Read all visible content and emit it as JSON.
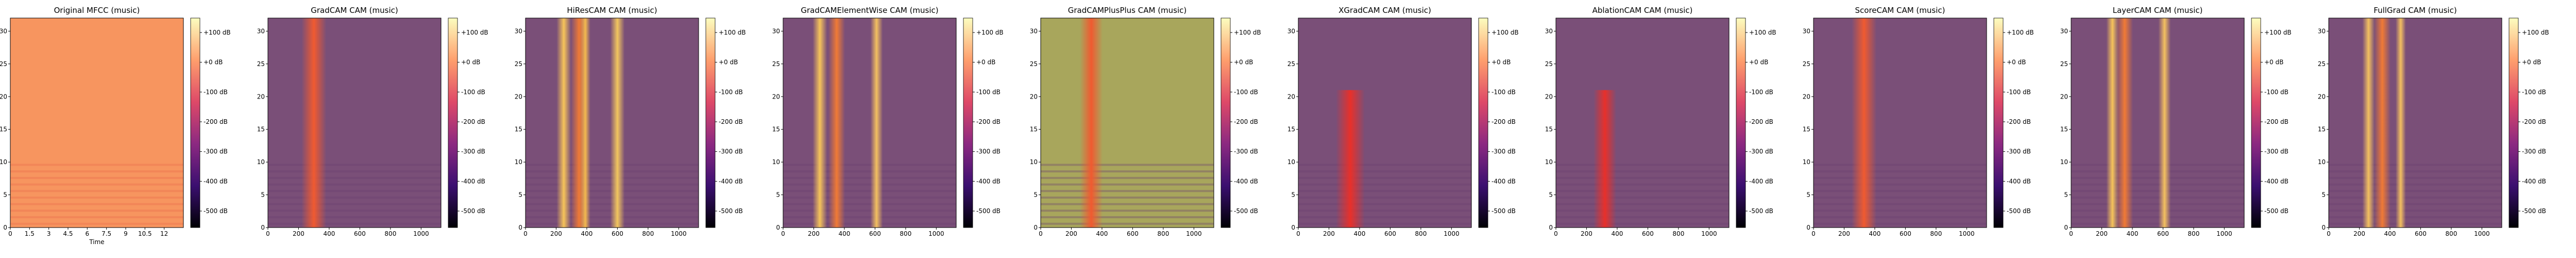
{
  "chart_data": [
    {
      "type": "heatmap",
      "title": "Original MFCC (music)",
      "xlabel": "Time",
      "xticks": [
        "0",
        "1.5",
        "3",
        "4.5",
        "6",
        "7.5",
        "9",
        "10.5",
        "12"
      ],
      "xlim": [
        0,
        13.5
      ],
      "yticks": [
        "0",
        "5",
        "10",
        "15",
        "20",
        "25",
        "30"
      ],
      "ylim": [
        0,
        32
      ],
      "colorbar": {
        "ticks": [
          "+100 dB",
          "+0 dB",
          "-100 dB",
          "-200 dB",
          "-300 dB",
          "-400 dB",
          "-500 dB"
        ]
      },
      "colormap": "magma",
      "heat": "uniform"
    },
    {
      "type": "heatmap",
      "title": "GradCAM CAM (music)",
      "xticks": [
        "0",
        "200",
        "400",
        "600",
        "800",
        "1000"
      ],
      "xlim": [
        0,
        1130
      ],
      "yticks": [
        "0",
        "5",
        "10",
        "15",
        "20",
        "25",
        "30"
      ],
      "ylim": [
        0,
        32
      ],
      "colorbar": {
        "ticks": [
          "+100 dB",
          "+0 dB",
          "-100 dB",
          "-200 dB",
          "-300 dB",
          "-400 dB",
          "-500 dB"
        ]
      },
      "bands": [
        {
          "x": 300,
          "ymax": 32,
          "w": 24,
          "color": "#f05a30"
        }
      ]
    },
    {
      "type": "heatmap",
      "title": "HiResCAM CAM (music)",
      "xticks": [
        "0",
        "200",
        "400",
        "600",
        "800",
        "1000"
      ],
      "xlim": [
        0,
        1130
      ],
      "yticks": [
        "0",
        "5",
        "10",
        "15",
        "20",
        "25",
        "30"
      ],
      "ylim": [
        0,
        32
      ],
      "colorbar": {
        "ticks": [
          "+100 dB",
          "+0 dB",
          "-100 dB",
          "-200 dB",
          "-300 dB",
          "-400 dB",
          "-500 dB"
        ]
      },
      "bands": [
        {
          "x": 250,
          "ymax": 32,
          "w": 14,
          "color": "#f6c45a"
        },
        {
          "x": 350,
          "ymax": 32,
          "w": 16,
          "color": "#f07a35"
        },
        {
          "x": 390,
          "ymax": 32,
          "w": 10,
          "color": "#f3b94f"
        },
        {
          "x": 600,
          "ymax": 32,
          "w": 14,
          "color": "#f2c65e"
        }
      ]
    },
    {
      "type": "heatmap",
      "title": "GradCAMElementWise CAM (music)",
      "xticks": [
        "0",
        "200",
        "400",
        "600",
        "800",
        "1000"
      ],
      "xlim": [
        0,
        1130
      ],
      "yticks": [
        "0",
        "5",
        "10",
        "15",
        "20",
        "25",
        "30"
      ],
      "ylim": [
        0,
        32
      ],
      "colorbar": {
        "ticks": [
          "+100 dB",
          "+0 dB",
          "-100 dB",
          "-200 dB",
          "-300 dB",
          "-400 dB",
          "-500 dB"
        ]
      },
      "bands": [
        {
          "x": 240,
          "ymax": 32,
          "w": 14,
          "color": "#f6c45a"
        },
        {
          "x": 350,
          "ymax": 32,
          "w": 16,
          "color": "#f07a35"
        },
        {
          "x": 610,
          "ymax": 32,
          "w": 12,
          "color": "#f3c060"
        }
      ]
    },
    {
      "type": "heatmap",
      "title": "GradCAMPlusPlus CAM (music)",
      "xticks": [
        "0",
        "200",
        "400",
        "600",
        "800",
        "1000"
      ],
      "xlim": [
        0,
        1130
      ],
      "yticks": [
        "0",
        "5",
        "10",
        "15",
        "20",
        "25",
        "30"
      ],
      "ylim": [
        0,
        32
      ],
      "colorbar": {
        "ticks": [
          "+100 dB",
          "+0 dB",
          "-100 dB",
          "-200 dB",
          "-300 dB",
          "-400 dB",
          "-500 dB"
        ]
      },
      "heat": "uniform-olive",
      "bands": [
        {
          "x": 330,
          "ymax": 32,
          "w": 22,
          "color": "#f05a30"
        }
      ]
    },
    {
      "type": "heatmap",
      "title": "XGradCAM CAM (music)",
      "xticks": [
        "0",
        "200",
        "400",
        "600",
        "800",
        "1000"
      ],
      "xlim": [
        0,
        1130
      ],
      "yticks": [
        "0",
        "5",
        "10",
        "15",
        "20",
        "25",
        "30"
      ],
      "ylim": [
        0,
        32
      ],
      "colorbar": {
        "ticks": [
          "+100 dB",
          "+0 dB",
          "-100 dB",
          "-200 dB",
          "-300 dB",
          "-400 dB",
          "-500 dB"
        ]
      },
      "bands": [
        {
          "x": 340,
          "ymax": 21,
          "w": 28,
          "color": "#e8302a"
        }
      ]
    },
    {
      "type": "heatmap",
      "title": "AblationCAM CAM (music)",
      "xticks": [
        "0",
        "200",
        "400",
        "600",
        "800",
        "1000"
      ],
      "xlim": [
        0,
        1130
      ],
      "yticks": [
        "0",
        "5",
        "10",
        "15",
        "20",
        "25",
        "30"
      ],
      "ylim": [
        0,
        32
      ],
      "colorbar": {
        "ticks": [
          "+100 dB",
          "+0 dB",
          "-100 dB",
          "-200 dB",
          "-300 dB",
          "-400 dB",
          "-500 dB"
        ]
      },
      "bands": [
        {
          "x": 320,
          "ymax": 21,
          "w": 22,
          "color": "#e8302a"
        }
      ]
    },
    {
      "type": "heatmap",
      "title": "ScoreCAM CAM (music)",
      "xticks": [
        "0",
        "200",
        "400",
        "600",
        "800",
        "1000"
      ],
      "xlim": [
        0,
        1130
      ],
      "yticks": [
        "0",
        "5",
        "10",
        "15",
        "20",
        "25",
        "30"
      ],
      "ylim": [
        0,
        32
      ],
      "colorbar": {
        "ticks": [
          "+100 dB",
          "+0 dB",
          "-100 dB",
          "-200 dB",
          "-300 dB",
          "-400 dB",
          "-500 dB"
        ]
      },
      "bands": [
        {
          "x": 330,
          "ymax": 32,
          "w": 24,
          "color": "#f05a30"
        }
      ]
    },
    {
      "type": "heatmap",
      "title": "LayerCAM CAM (music)",
      "xticks": [
        "0",
        "200",
        "400",
        "600",
        "800",
        "1000"
      ],
      "xlim": [
        0,
        1130
      ],
      "yticks": [
        "0",
        "5",
        "10",
        "15",
        "20",
        "25",
        "30"
      ],
      "ylim": [
        0,
        32
      ],
      "colorbar": {
        "ticks": [
          "+100 dB",
          "+0 dB",
          "-100 dB",
          "-200 dB",
          "-300 dB",
          "-400 dB",
          "-500 dB"
        ]
      },
      "bands": [
        {
          "x": 270,
          "ymax": 32,
          "w": 12,
          "color": "#f6c45a"
        },
        {
          "x": 350,
          "ymax": 32,
          "w": 16,
          "color": "#f07a35"
        },
        {
          "x": 610,
          "ymax": 32,
          "w": 12,
          "color": "#f3c060"
        }
      ]
    },
    {
      "type": "heatmap",
      "title": "FullGrad CAM (music)",
      "xticks": [
        "0",
        "200",
        "400",
        "600",
        "800",
        "1000"
      ],
      "xlim": [
        0,
        1130
      ],
      "yticks": [
        "0",
        "5",
        "10",
        "15",
        "20",
        "25",
        "30"
      ],
      "ylim": [
        0,
        32
      ],
      "colorbar": {
        "ticks": [
          "+100 dB",
          "+0 dB",
          "-100 dB",
          "-200 dB",
          "-300 dB",
          "-400 dB",
          "-500 dB"
        ]
      },
      "bands": [
        {
          "x": 260,
          "ymax": 32,
          "w": 12,
          "color": "#f3c060"
        },
        {
          "x": 350,
          "ymax": 32,
          "w": 16,
          "color": "#f07a35"
        },
        {
          "x": 470,
          "ymax": 32,
          "w": 10,
          "color": "#f3c060"
        }
      ]
    }
  ]
}
